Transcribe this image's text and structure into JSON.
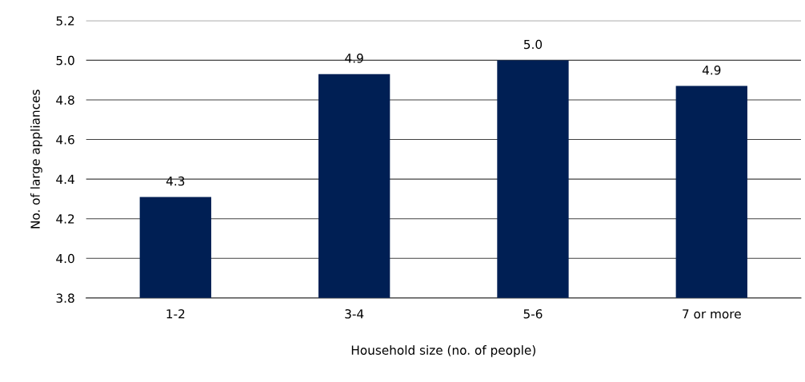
{
  "chart_data": {
    "type": "bar",
    "xlabel": "Household size (no. of people)",
    "ylabel": "No. of large appliances",
    "categories": [
      "1-2",
      "3-4",
      "5-6",
      "7 or more"
    ],
    "values": [
      4.31,
      4.93,
      5.0,
      4.87
    ],
    "value_labels": [
      "4.3",
      "4.9",
      "5.0",
      "4.9"
    ],
    "color": "#001f54",
    "ylim": [
      3.8,
      5.2
    ],
    "yticks": [
      "3.8",
      "4.0",
      "4.2",
      "4.4",
      "4.6",
      "4.8",
      "5.0",
      "5.2"
    ],
    "grid": "y"
  }
}
